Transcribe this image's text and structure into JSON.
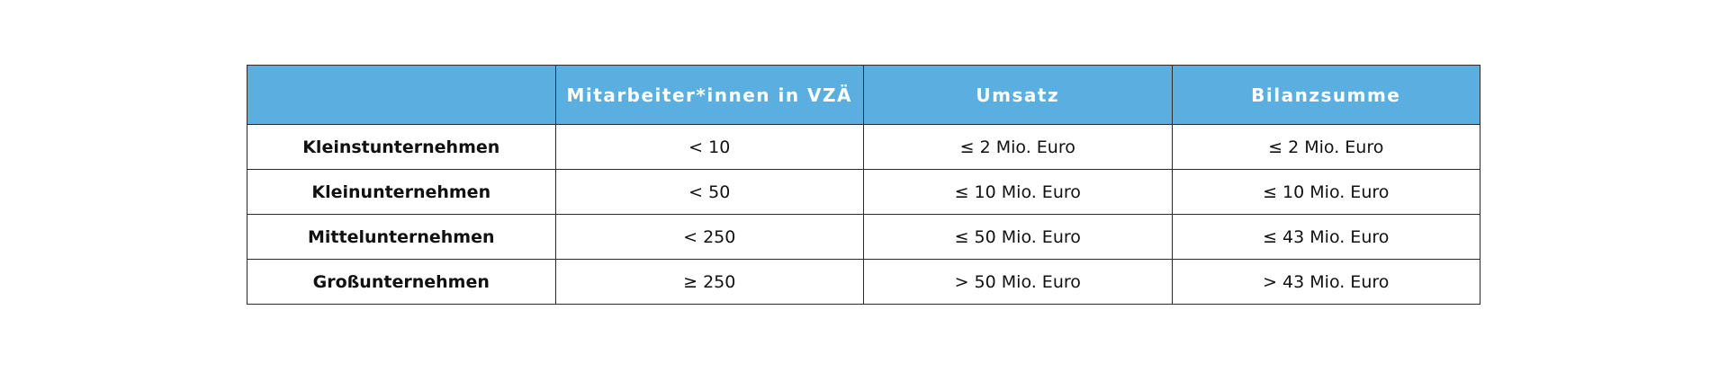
{
  "table": {
    "header": [
      "Mitarbeiter*innen in VZÄ",
      "Umsatz",
      "Bilanzsumme"
    ],
    "rows": [
      [
        "Kleinstunternehmen",
        "< 10",
        "≤ 2 Mio. Euro",
        "≤ 2 Mio. Euro"
      ],
      [
        "Kleinunternehmen",
        "< 50",
        "≤ 10 Mio. Euro",
        "≤ 10 Mio. Euro"
      ],
      [
        "Mittelunternehmen",
        "< 250",
        "≤ 50 Mio. Euro",
        "≤ 43 Mio. Euro"
      ],
      [
        "Großunternehmen",
        "≥ 250",
        "> 50 Mio. Euro",
        "> 43 Mio. Euro"
      ]
    ]
  }
}
